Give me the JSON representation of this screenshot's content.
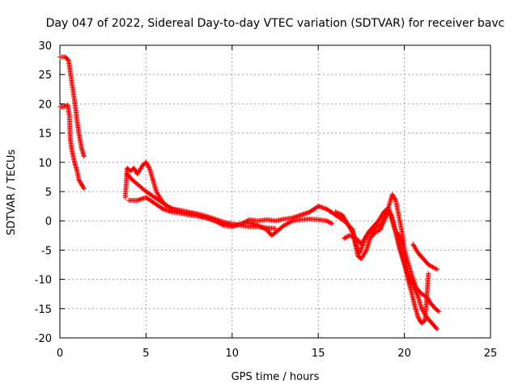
{
  "chart_data": {
    "type": "scatter",
    "title": "Day 047 of 2022, Sidereal Day-to-day VTEC variation (SDTVAR) for receiver bavc",
    "xlabel": "GPS time / hours",
    "ylabel": "SDTVAR / TECUs",
    "xlim": [
      0,
      25
    ],
    "ylim": [
      -20,
      30
    ],
    "xticks": [
      0,
      5,
      10,
      15,
      20,
      25
    ],
    "yticks": [
      -20,
      -15,
      -10,
      -5,
      0,
      5,
      10,
      15,
      20,
      25,
      30
    ],
    "grid": true,
    "marker": "+",
    "series": [
      {
        "name": "SDTVAR",
        "color": "#ff0000",
        "tracks": [
          [
            [
              0.0,
              28.0
            ],
            [
              0.3,
              28.0
            ],
            [
              0.5,
              27.5
            ],
            [
              0.6,
              25.5
            ],
            [
              0.75,
              22.5
            ],
            [
              0.9,
              19.5
            ],
            [
              1.0,
              17.0
            ],
            [
              1.1,
              15.0
            ],
            [
              1.25,
              12.5
            ],
            [
              1.4,
              11.0
            ]
          ],
          [
            [
              0.0,
              19.5
            ],
            [
              0.25,
              19.5
            ],
            [
              0.45,
              19.8
            ],
            [
              0.55,
              18.0
            ],
            [
              0.6,
              14.0
            ],
            [
              0.7,
              12.0
            ],
            [
              0.85,
              10.0
            ],
            [
              1.0,
              8.5
            ],
            [
              1.1,
              7.0
            ],
            [
              1.3,
              6.0
            ],
            [
              1.4,
              5.5
            ]
          ],
          [
            [
              3.8,
              4.0
            ],
            [
              3.9,
              9.0
            ],
            [
              4.1,
              8.5
            ],
            [
              4.3,
              9.0
            ],
            [
              4.5,
              8.0
            ],
            [
              4.8,
              9.5
            ],
            [
              5.0,
              10.0
            ],
            [
              5.2,
              9.0
            ],
            [
              5.4,
              7.0
            ],
            [
              5.6,
              5.0
            ],
            [
              5.9,
              3.5
            ],
            [
              6.2,
              2.5
            ],
            [
              6.6,
              2.0
            ],
            [
              7.0,
              1.8
            ],
            [
              7.5,
              1.5
            ],
            [
              8.0,
              1.2
            ],
            [
              8.5,
              0.8
            ],
            [
              9.0,
              0.3
            ],
            [
              9.5,
              -0.2
            ],
            [
              10.0,
              -0.5
            ],
            [
              10.5,
              -0.8
            ],
            [
              11.0,
              -1.0
            ],
            [
              11.5,
              -1.0
            ],
            [
              12.0,
              -1.2
            ],
            [
              12.5,
              -1.3
            ]
          ],
          [
            [
              3.9,
              8.0
            ],
            [
              4.2,
              7.0
            ],
            [
              4.6,
              6.0
            ],
            [
              5.0,
              5.0
            ],
            [
              5.5,
              4.0
            ],
            [
              6.0,
              3.0
            ],
            [
              6.5,
              2.0
            ],
            [
              7.0,
              1.5
            ],
            [
              7.5,
              1.3
            ],
            [
              8.0,
              1.0
            ],
            [
              8.5,
              0.5
            ],
            [
              9.0,
              0.0
            ],
            [
              9.5,
              -0.5
            ],
            [
              10.0,
              -0.8
            ],
            [
              10.5,
              -0.6
            ],
            [
              11.0,
              0.2
            ],
            [
              11.5,
              0.0
            ],
            [
              12.0,
              0.2
            ],
            [
              12.5,
              0.0
            ],
            [
              13.0,
              0.3
            ],
            [
              13.5,
              0.5
            ],
            [
              14.0,
              1.0
            ],
            [
              14.5,
              1.5
            ],
            [
              15.0,
              2.5
            ],
            [
              15.5,
              2.0
            ],
            [
              16.0,
              1.0
            ],
            [
              16.5,
              0.0
            ],
            [
              17.0,
              -1.5
            ],
            [
              17.2,
              -4.0
            ],
            [
              17.4,
              -5.5
            ],
            [
              17.6,
              -4.0
            ],
            [
              17.9,
              -2.0
            ],
            [
              18.2,
              -1.0
            ],
            [
              18.5,
              0.0
            ],
            [
              18.8,
              1.5
            ],
            [
              19.0,
              2.0
            ],
            [
              19.2,
              1.0
            ],
            [
              19.4,
              -1.0
            ],
            [
              19.6,
              -3.0
            ],
            [
              19.8,
              -5.0
            ],
            [
              20.0,
              -7.0
            ],
            [
              20.2,
              -9.0
            ],
            [
              20.5,
              -11.0
            ],
            [
              20.8,
              -13.0
            ],
            [
              21.0,
              -15.0
            ],
            [
              21.3,
              -16.5
            ],
            [
              21.6,
              -17.5
            ],
            [
              21.9,
              -18.5
            ]
          ],
          [
            [
              4.0,
              3.5
            ],
            [
              4.5,
              3.5
            ],
            [
              5.0,
              4.0
            ],
            [
              5.5,
              3.0
            ],
            [
              6.0,
              2.0
            ],
            [
              6.5,
              1.5
            ],
            [
              7.0,
              1.3
            ],
            [
              7.5,
              1.0
            ],
            [
              8.0,
              0.8
            ],
            [
              8.5,
              0.5
            ],
            [
              9.0,
              0.0
            ],
            [
              9.5,
              -0.8
            ],
            [
              10.0,
              -1.0
            ],
            [
              10.5,
              -0.5
            ],
            [
              11.0,
              -0.3
            ],
            [
              11.5,
              -0.8
            ],
            [
              12.0,
              -1.5
            ],
            [
              12.3,
              -2.5
            ],
            [
              12.6,
              -1.8
            ],
            [
              13.0,
              -0.8
            ],
            [
              13.5,
              0.0
            ],
            [
              14.0,
              0.2
            ],
            [
              14.5,
              0.3
            ],
            [
              15.0,
              0.2
            ],
            [
              15.5,
              0.0
            ],
            [
              15.8,
              -0.5
            ]
          ],
          [
            [
              16.0,
              1.5
            ],
            [
              16.4,
              1.0
            ],
            [
              16.8,
              -1.0
            ],
            [
              17.0,
              -2.0
            ],
            [
              17.3,
              -6.0
            ],
            [
              17.5,
              -6.5
            ],
            [
              17.8,
              -5.0
            ],
            [
              18.0,
              -3.0
            ],
            [
              18.3,
              -2.0
            ],
            [
              18.6,
              -1.5
            ],
            [
              18.9,
              0.5
            ],
            [
              19.1,
              2.0
            ],
            [
              19.3,
              0.5
            ],
            [
              19.5,
              -2.0
            ],
            [
              19.7,
              -4.5
            ],
            [
              19.9,
              -6.5
            ],
            [
              20.1,
              -8.5
            ],
            [
              20.3,
              -10.0
            ],
            [
              20.5,
              -11.0
            ]
          ],
          [
            [
              16.5,
              -3.0
            ],
            [
              16.8,
              -2.5
            ],
            [
              17.2,
              -3.0
            ],
            [
              17.5,
              -4.0
            ],
            [
              17.8,
              -2.5
            ],
            [
              18.1,
              -1.8
            ],
            [
              18.4,
              -1.0
            ],
            [
              18.7,
              -0.5
            ],
            [
              18.9,
              1.0
            ],
            [
              19.1,
              2.5
            ],
            [
              19.3,
              4.5
            ],
            [
              19.5,
              3.5
            ],
            [
              19.7,
              0.5
            ],
            [
              19.9,
              -2.5
            ],
            [
              20.0,
              -5.0
            ],
            [
              20.1,
              -8.0
            ],
            [
              20.2,
              -10.0
            ],
            [
              20.4,
              -12.0
            ],
            [
              20.6,
              -14.5
            ],
            [
              20.8,
              -16.5
            ],
            [
              21.0,
              -17.5
            ],
            [
              21.2,
              -17.0
            ],
            [
              21.3,
              -13.0
            ],
            [
              21.4,
              -9.0
            ]
          ],
          [
            [
              19.6,
              -2.0
            ],
            [
              19.9,
              -4.0
            ],
            [
              20.1,
              -6.0
            ],
            [
              20.4,
              -9.0
            ],
            [
              20.7,
              -11.5
            ],
            [
              21.0,
              -12.5
            ],
            [
              21.3,
              -13.0
            ],
            [
              21.5,
              -14.0
            ],
            [
              21.8,
              -15.0
            ],
            [
              22.0,
              -15.5
            ]
          ],
          [
            [
              20.5,
              -4.0
            ],
            [
              20.8,
              -5.5
            ],
            [
              21.1,
              -6.5
            ],
            [
              21.4,
              -7.5
            ],
            [
              21.7,
              -8.0
            ],
            [
              21.9,
              -8.3
            ]
          ]
        ]
      }
    ]
  }
}
